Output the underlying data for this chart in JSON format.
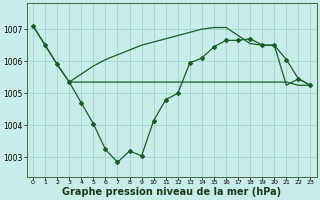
{
  "bg_color": "#c8ece8",
  "grid_color": "#a0d4cc",
  "line_color": "#1a5c28",
  "xlabel": "Graphe pression niveau de la mer (hPa)",
  "xlabel_fontsize": 7.0,
  "xlim": [
    -0.5,
    23.5
  ],
  "ylim": [
    1002.4,
    1007.8
  ],
  "yticks": [
    1003,
    1004,
    1005,
    1006,
    1007
  ],
  "xticks": [
    0,
    1,
    2,
    3,
    4,
    5,
    6,
    7,
    8,
    9,
    10,
    11,
    12,
    13,
    14,
    15,
    16,
    17,
    18,
    19,
    20,
    21,
    22,
    23
  ],
  "series1_x": [
    0,
    1,
    2,
    3,
    4,
    5,
    6,
    7,
    8,
    9,
    10,
    11,
    12,
    13,
    14,
    15,
    16,
    17,
    18,
    19,
    20,
    21,
    22,
    23
  ],
  "series1_y": [
    1007.1,
    1006.5,
    1005.9,
    1005.35,
    1004.7,
    1004.05,
    1003.25,
    1002.85,
    1003.2,
    1003.05,
    1004.15,
    1004.8,
    1005.0,
    1005.95,
    1006.1,
    1006.45,
    1006.65,
    1006.65,
    1006.7,
    1006.5,
    1006.5,
    1006.05,
    1005.45,
    1005.25
  ],
  "series2_x": [
    0,
    1,
    2,
    3,
    4,
    5,
    6,
    7,
    8,
    9,
    10,
    11,
    12,
    13,
    14,
    15,
    16,
    17,
    18,
    19,
    20,
    21,
    22,
    23
  ],
  "series2_y": [
    1007.1,
    1006.5,
    1005.9,
    1005.35,
    1005.35,
    1005.35,
    1005.35,
    1005.35,
    1005.35,
    1005.35,
    1005.35,
    1005.35,
    1005.35,
    1005.35,
    1005.35,
    1005.35,
    1005.35,
    1005.35,
    1005.35,
    1005.35,
    1005.35,
    1005.35,
    1005.25,
    1005.25
  ],
  "series3_x": [
    3,
    4,
    5,
    6,
    7,
    8,
    9,
    10,
    11,
    12,
    13,
    14,
    15,
    16,
    17,
    18,
    19,
    20,
    21,
    22,
    23
  ],
  "series3_y": [
    1005.35,
    1005.6,
    1005.85,
    1006.05,
    1006.2,
    1006.35,
    1006.5,
    1006.6,
    1006.7,
    1006.8,
    1006.9,
    1007.0,
    1007.05,
    1007.05,
    1006.8,
    1006.55,
    1006.5,
    1006.5,
    1005.25,
    1005.45,
    1005.25
  ]
}
